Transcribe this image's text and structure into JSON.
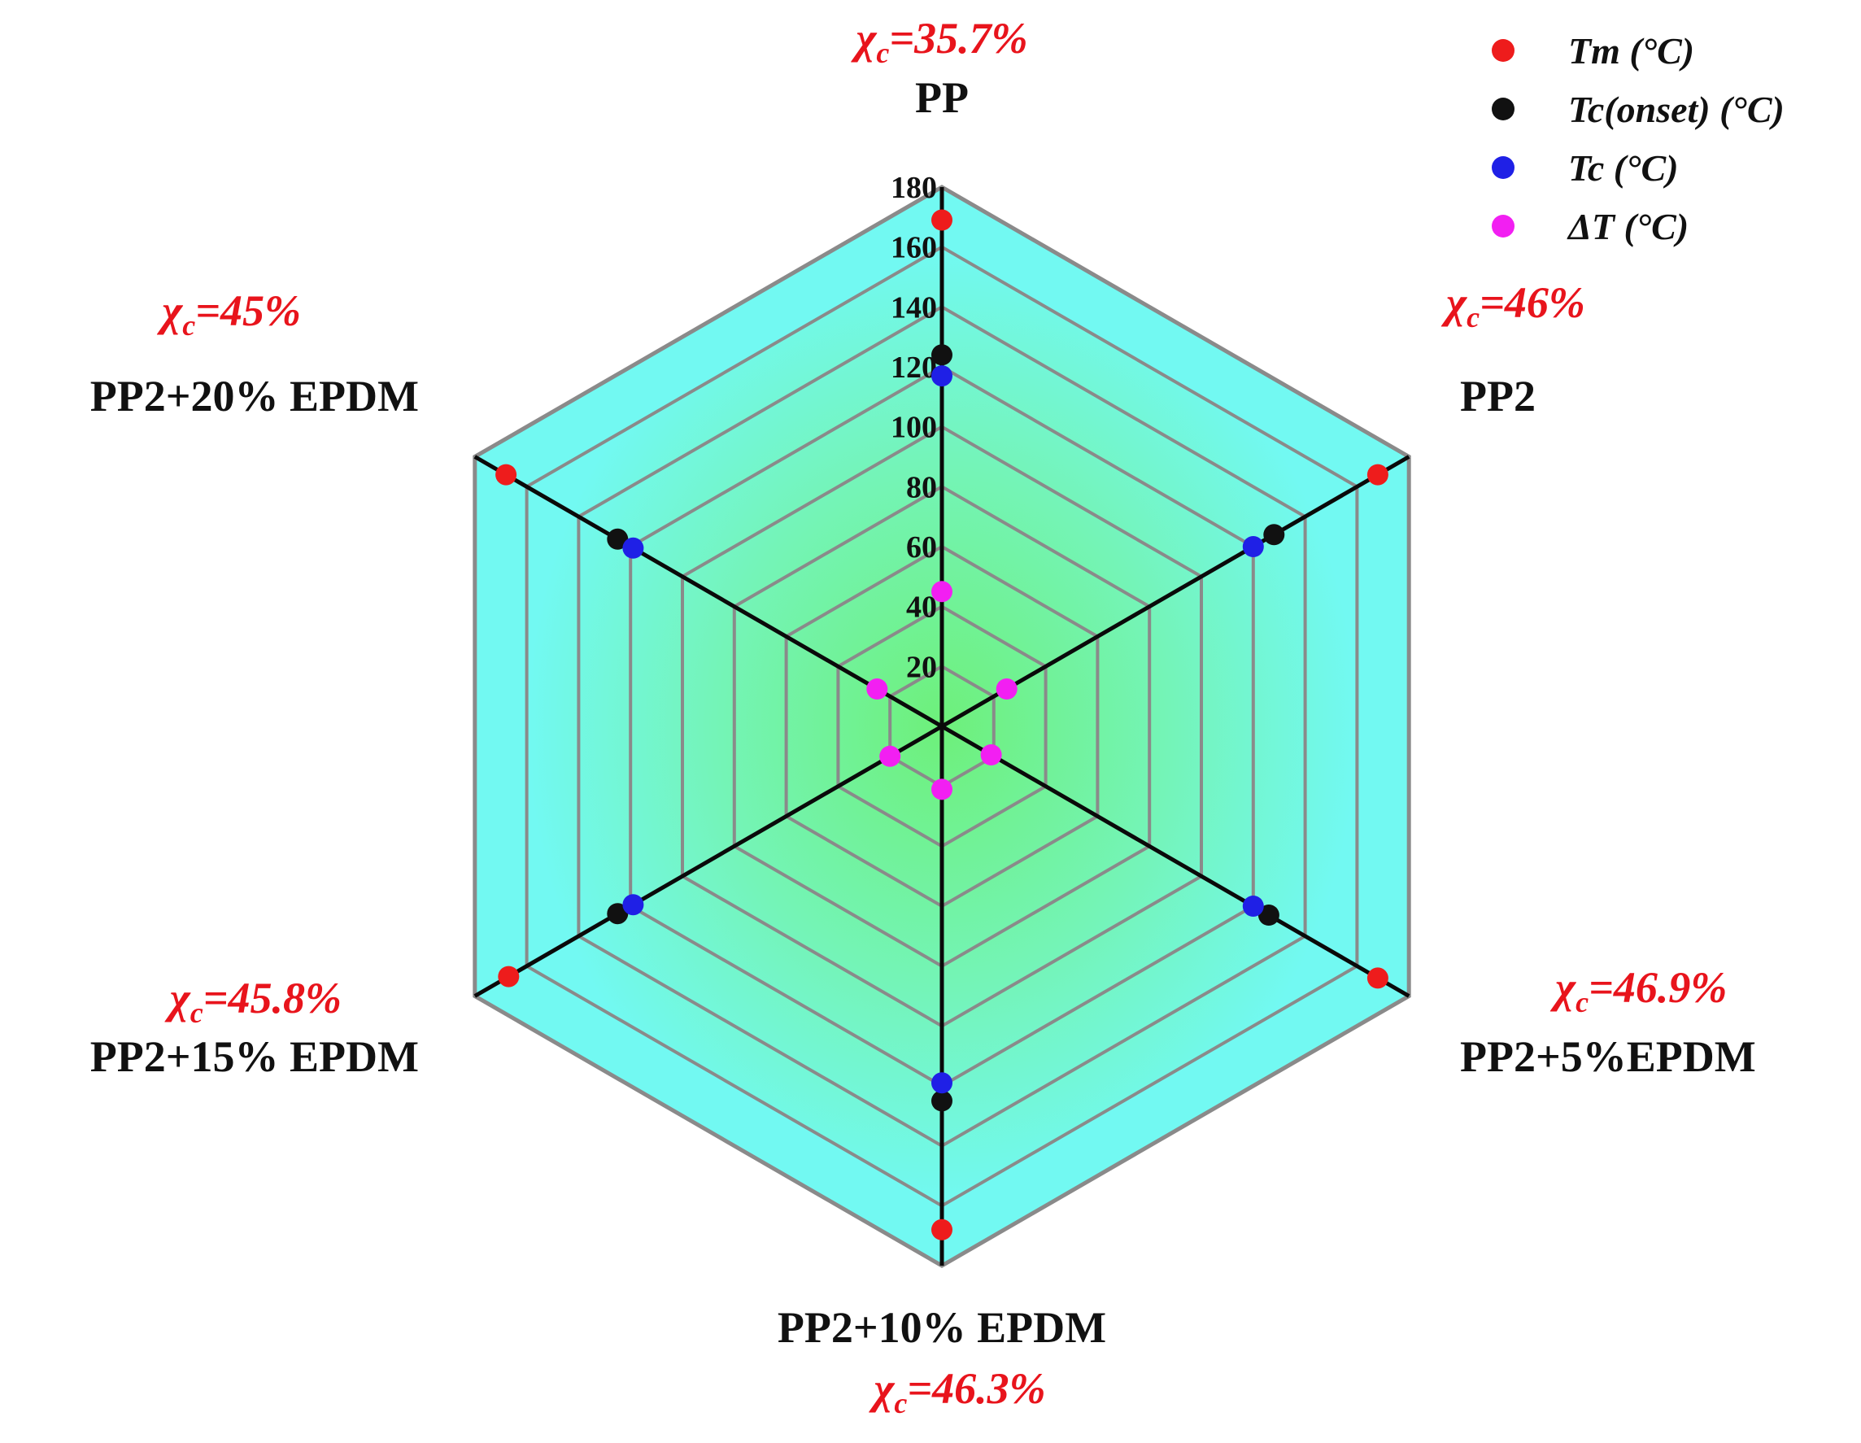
{
  "chart_data": {
    "type": "radar",
    "categories": [
      "PP",
      "PP2",
      "PP2+5%EPDM",
      "PP2+10% EPDM",
      "PP2+15% EPDM",
      "PP2+20% EPDM"
    ],
    "crystallinity_labels": [
      {
        "symbol": "χ",
        "sub": "c",
        "value": "=35.7%"
      },
      {
        "symbol": "χ",
        "sub": "c",
        "value": "=46%"
      },
      {
        "symbol": "χ",
        "sub": "c",
        "value": "=46.9%"
      },
      {
        "symbol": "χ",
        "sub": "c",
        "value": "=46.3%"
      },
      {
        "symbol": "χ",
        "sub": "c",
        "value": "=45.8%"
      },
      {
        "symbol": "χ",
        "sub": "c",
        "value": "=45%"
      }
    ],
    "radial_axis": {
      "min": 0,
      "max": 180,
      "ring_step": 20,
      "tick_values": [
        20,
        40,
        60,
        80,
        100,
        120,
        140,
        160,
        180
      ],
      "tick_labels": [
        "20",
        "40",
        "60",
        "80",
        "100",
        "120",
        "140",
        "160",
        "180"
      ]
    },
    "series": [
      {
        "name": "Tm (°C)",
        "color": "#ee1c1c",
        "values": [
          169,
          168,
          168,
          168,
          167,
          168
        ]
      },
      {
        "name": "Tc(onset) (°C)",
        "color": "#111111",
        "values": [
          124,
          128,
          126,
          125,
          125,
          125
        ]
      },
      {
        "name": "Tc (°C)",
        "color": "#1f20e6",
        "values": [
          117,
          120,
          120,
          119,
          119,
          119
        ]
      },
      {
        "name": "ΔT (°C)",
        "color": "#f21ff2",
        "values": [
          45,
          25,
          19,
          21,
          20,
          25
        ]
      }
    ],
    "legend_position": "top-right",
    "colors": {
      "outer_band": "#72f9f2",
      "center": "#6ef07a",
      "ring": "#8a8a8a",
      "spoke": "#0a0a0a"
    }
  }
}
